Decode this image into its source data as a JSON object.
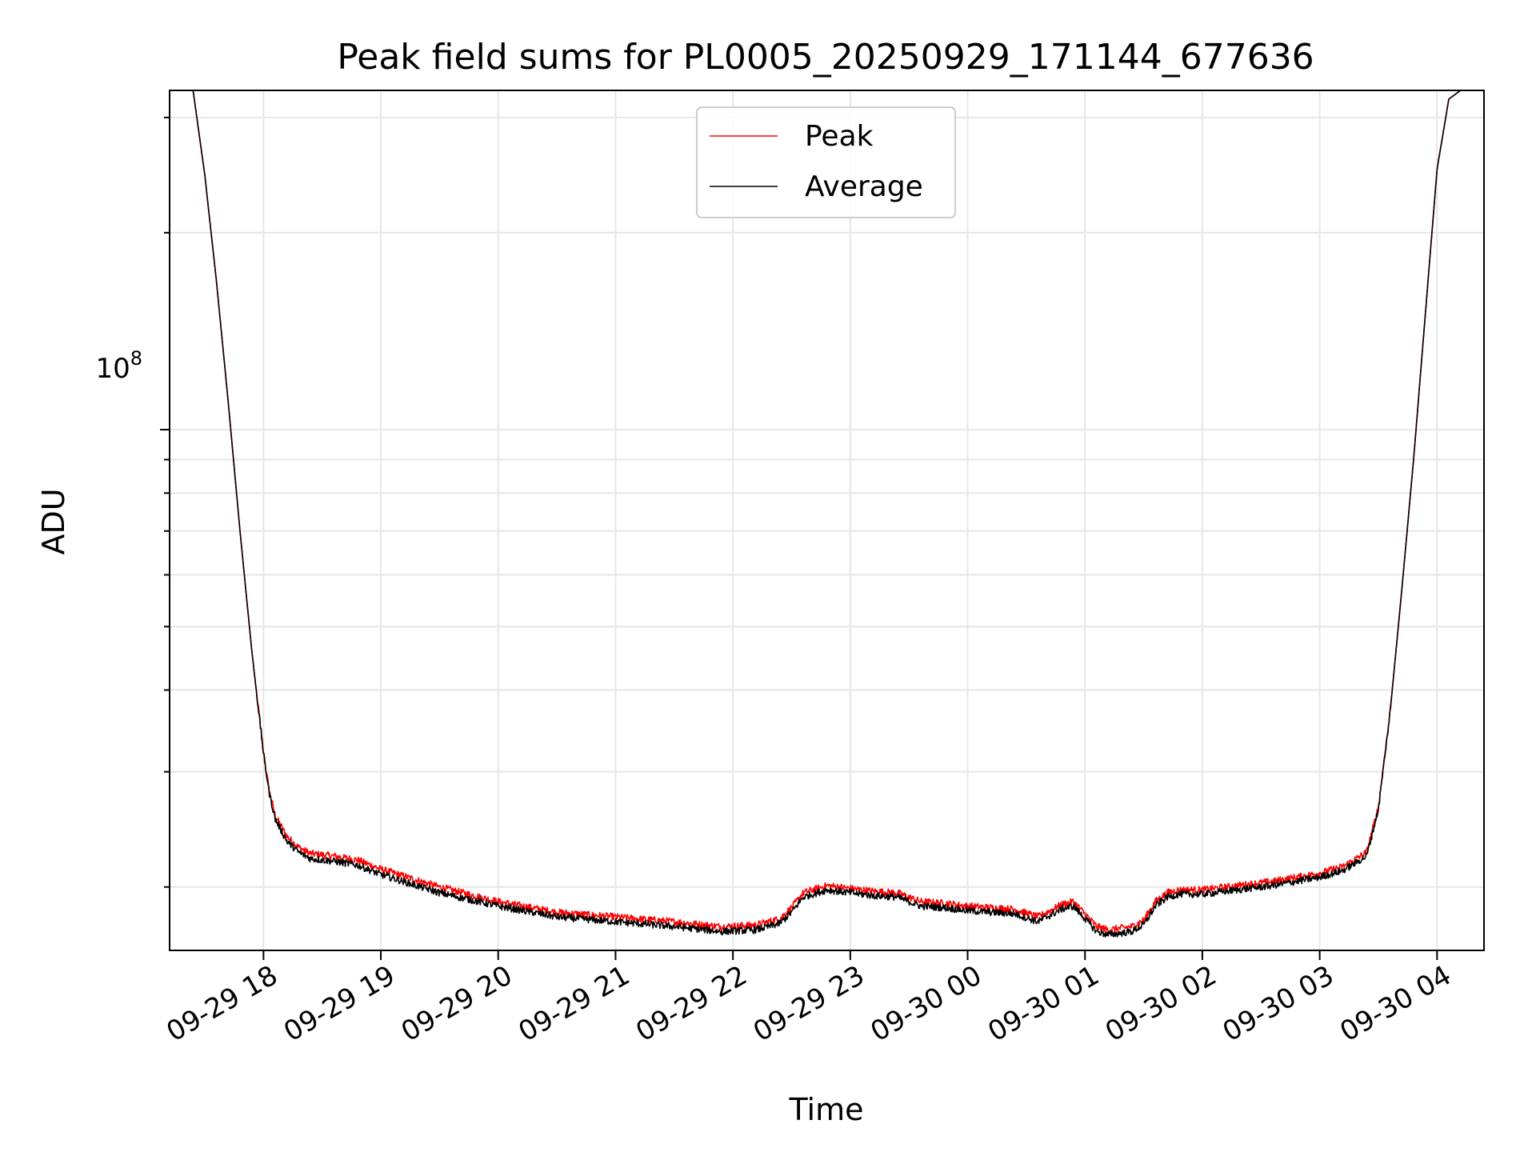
{
  "chart_data": {
    "type": "line",
    "title": "Peak field sums for PL0005_20250929_171144_677636",
    "xlabel": "Time",
    "ylabel": "ADU",
    "yscale": "log",
    "ytick_major": {
      "base": "10",
      "exp": "8",
      "value": 100000000
    },
    "xlim_hours": [
      17.2,
      28.4
    ],
    "ylim": [
      16000000,
      330000000
    ],
    "x_ticks": [
      {
        "label": "09-29 18",
        "hour": 18
      },
      {
        "label": "09-29 19",
        "hour": 19
      },
      {
        "label": "09-29 20",
        "hour": 20
      },
      {
        "label": "09-29 21",
        "hour": 21
      },
      {
        "label": "09-29 22",
        "hour": 22
      },
      {
        "label": "09-29 23",
        "hour": 23
      },
      {
        "label": "09-30 00",
        "hour": 24
      },
      {
        "label": "09-30 01",
        "hour": 25
      },
      {
        "label": "09-30 02",
        "hour": 26
      },
      {
        "label": "09-30 03",
        "hour": 27
      },
      {
        "label": "09-30 04",
        "hour": 28
      }
    ],
    "grid": true,
    "legend_position": "top-center",
    "series": [
      {
        "name": "Peak",
        "color": "#ff0000",
        "x_hours": [
          17.2,
          17.4,
          17.5,
          17.6,
          17.7,
          17.8,
          17.9,
          18.0,
          18.05,
          18.1,
          18.2,
          18.3,
          18.4,
          18.6,
          18.8,
          19.0,
          19.5,
          20.0,
          20.5,
          21.0,
          21.5,
          21.9,
          22.2,
          22.4,
          22.5,
          22.6,
          22.8,
          23.0,
          23.2,
          23.4,
          23.6,
          23.8,
          24.0,
          24.2,
          24.4,
          24.6,
          24.8,
          24.9,
          25.0,
          25.1,
          25.2,
          25.4,
          25.5,
          25.6,
          25.7,
          25.8,
          26.0,
          26.3,
          26.6,
          27.0,
          27.2,
          27.4,
          27.5,
          27.6,
          27.7,
          27.8,
          27.9,
          28.0,
          28.1,
          28.2,
          28.3,
          28.4
        ],
        "values": [
          330000000,
          330000000,
          245000000,
          168000000,
          110000000,
          70000000,
          46000000,
          32000000,
          28000000,
          25700000,
          23900000,
          23000000,
          22500000,
          22300000,
          22000000,
          21300000,
          20000000,
          19000000,
          18300000,
          18000000,
          17700000,
          17400000,
          17500000,
          17900000,
          18600000,
          19600000,
          20100000,
          19900000,
          19700000,
          19600000,
          19000000,
          18900000,
          18700000,
          18600000,
          18500000,
          18000000,
          18800000,
          19000000,
          18200000,
          17400000,
          17200000,
          17400000,
          17800000,
          19000000,
          19600000,
          19800000,
          19800000,
          20100000,
          20400000,
          21000000,
          21500000,
          22600000,
          26500000,
          37000000,
          57000000,
          90000000,
          150000000,
          250000000,
          320000000,
          330000000,
          330000000,
          330000000
        ]
      },
      {
        "name": "Average",
        "color": "#000000",
        "x_hours": [
          17.2,
          17.4,
          17.5,
          17.6,
          17.7,
          17.8,
          17.9,
          18.0,
          18.05,
          18.1,
          18.2,
          18.3,
          18.4,
          18.6,
          18.8,
          19.0,
          19.5,
          20.0,
          20.5,
          21.0,
          21.5,
          21.9,
          22.2,
          22.4,
          22.5,
          22.6,
          22.8,
          23.0,
          23.2,
          23.4,
          23.6,
          23.8,
          24.0,
          24.2,
          24.4,
          24.6,
          24.8,
          24.9,
          25.0,
          25.1,
          25.2,
          25.4,
          25.5,
          25.6,
          25.7,
          25.8,
          26.0,
          26.3,
          26.6,
          27.0,
          27.2,
          27.4,
          27.5,
          27.6,
          27.7,
          27.8,
          27.9,
          28.0,
          28.1,
          28.2,
          28.3,
          28.4
        ],
        "values": [
          330000000,
          330000000,
          245000000,
          168000000,
          110000000,
          70000000,
          46000000,
          32000000,
          27800000,
          25400000,
          23500000,
          22600000,
          22100000,
          21900000,
          21600000,
          20900000,
          19600000,
          18700000,
          18000000,
          17700000,
          17400000,
          17100000,
          17200000,
          17600000,
          18300000,
          19300000,
          19800000,
          19600000,
          19400000,
          19300000,
          18700000,
          18600000,
          18400000,
          18300000,
          18200000,
          17700000,
          18500000,
          18700000,
          17900000,
          17100000,
          16900000,
          17100000,
          17500000,
          18700000,
          19300000,
          19500000,
          19500000,
          19800000,
          20100000,
          20700000,
          21200000,
          22300000,
          26300000,
          37000000,
          57000000,
          90000000,
          150000000,
          250000000,
          320000000,
          330000000,
          330000000,
          330000000
        ]
      }
    ]
  }
}
